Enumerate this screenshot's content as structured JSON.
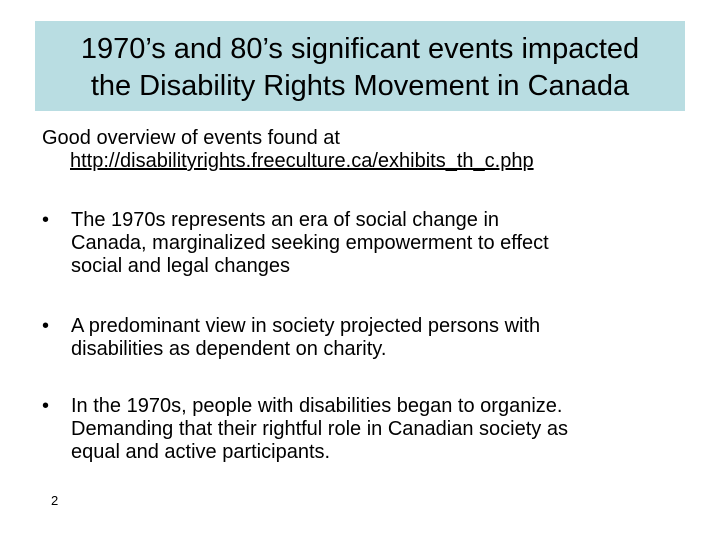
{
  "slide": {
    "title_lines": [
      "1970’s and 80’s significant events impacted",
      "the Disability Rights Movement in Canada"
    ],
    "intro": {
      "text": "Good overview of events found at",
      "link": "http://disabilityrights.freeculture.ca/exhibits_th_c.php"
    },
    "bullet_marker": "•",
    "bullets": [
      {
        "lines": [
          "The 1970s represents an era of social change in",
          "Canada, marginalized seeking empowerment to effect",
          "social and legal changes"
        ]
      },
      {
        "lines": [
          "A predominant view in society projected persons with",
          "disabilities as dependent on charity."
        ]
      },
      {
        "lines": [
          "In the 1970s, people with disabilities began to organize.",
          "Demanding that their rightful role in Canadian society as",
          "equal and active participants."
        ]
      }
    ],
    "page_number": "2",
    "colors": {
      "title_background": "#b9dde2",
      "text": "#000000",
      "background": "#ffffff"
    }
  }
}
